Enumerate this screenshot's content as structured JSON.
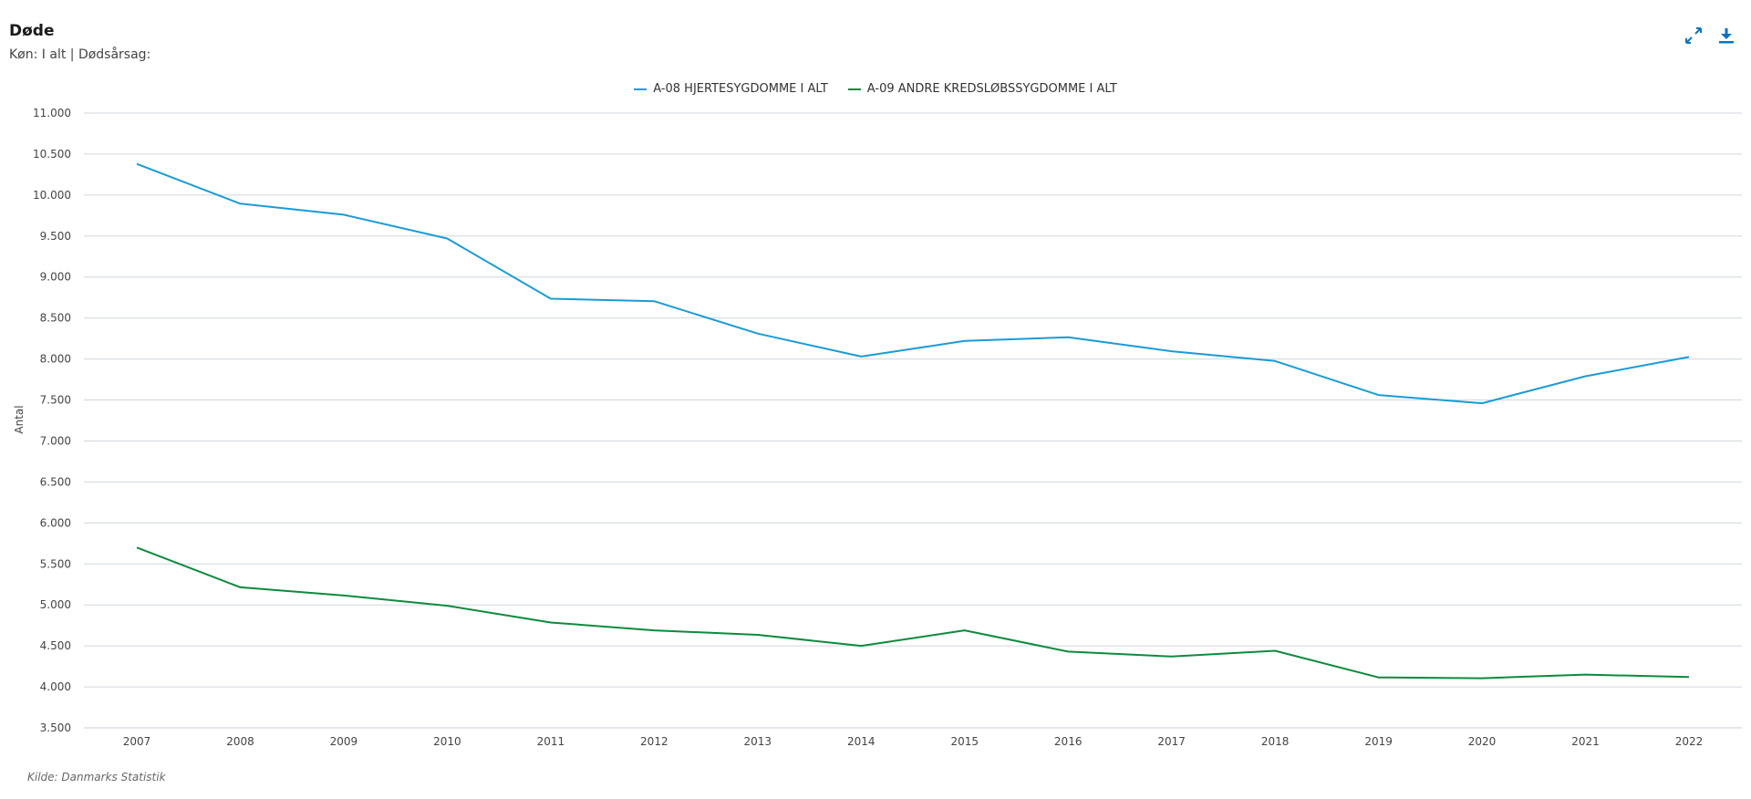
{
  "header": {
    "title": "Døde",
    "subtitle": "Køn: I alt | Dødsårsag:"
  },
  "toolbar": {
    "expand_icon": "expand-icon",
    "download_icon": "download-icon",
    "accent": "#0a74c0"
  },
  "footer": {
    "source": "Kilde: Danmarks Statistik"
  },
  "chart_data": {
    "type": "line",
    "title": "Døde",
    "subtitle": "Køn: I alt | Dødsårsag:",
    "ylabel": "Antal",
    "xlabel": "",
    "x": [
      "2007",
      "2008",
      "2009",
      "2010",
      "2011",
      "2012",
      "2013",
      "2014",
      "2015",
      "2016",
      "2017",
      "2018",
      "2019",
      "2020",
      "2021",
      "2022"
    ],
    "ylim": [
      3500,
      11000
    ],
    "yticks": [
      3500,
      4000,
      4500,
      5000,
      5500,
      6000,
      6500,
      7000,
      7500,
      8000,
      8500,
      9000,
      9500,
      10000,
      10500,
      11000
    ],
    "ytick_labels": [
      "3.500",
      "4.000",
      "4.500",
      "5.000",
      "5.500",
      "6.000",
      "6.500",
      "7.000",
      "7.500",
      "8.000",
      "8.500",
      "9.000",
      "9.500",
      "10.000",
      "10.500",
      "11.000"
    ],
    "grid": true,
    "legend_position": "top-center",
    "series": [
      {
        "name": "A-08 HJERTESYGDOMME I ALT",
        "color": "#1a9bd7",
        "values": [
          10380,
          9895,
          9760,
          9470,
          8735,
          8705,
          8310,
          8030,
          8220,
          8265,
          8095,
          7975,
          7560,
          7460,
          7790,
          8025
        ]
      },
      {
        "name": "A-09 ANDRE KREDSLØBSSYGDOMME I ALT",
        "color": "#0e8a3e",
        "values": [
          5700,
          5215,
          5115,
          4990,
          4785,
          4690,
          4635,
          4500,
          4690,
          4430,
          4370,
          4440,
          4115,
          4105,
          4150,
          4120
        ]
      }
    ]
  }
}
